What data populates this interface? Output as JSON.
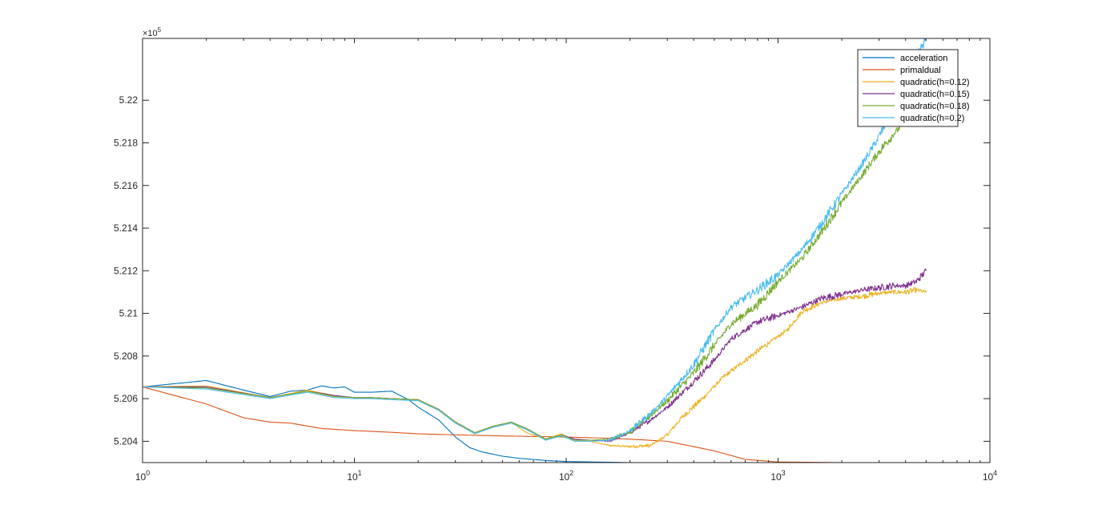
{
  "chart_data": {
    "type": "line",
    "title": "",
    "xlabel": "",
    "ylabel": "",
    "x_scale": "log",
    "xlim": [
      1,
      10000
    ],
    "ylim": [
      520300,
      522290
    ],
    "y_exponent_label": "×10",
    "y_exponent_power": "5",
    "x_ticks": [
      {
        "value": 1,
        "base": "10",
        "power": "0"
      },
      {
        "value": 10,
        "base": "10",
        "power": "1"
      },
      {
        "value": 100,
        "base": "10",
        "power": "2"
      },
      {
        "value": 1000,
        "base": "10",
        "power": "3"
      },
      {
        "value": 10000,
        "base": "10",
        "power": "4"
      }
    ],
    "y_ticks": [
      {
        "value": 520400,
        "label": "5.204"
      },
      {
        "value": 520600,
        "label": "5.206"
      },
      {
        "value": 520800,
        "label": "5.208"
      },
      {
        "value": 521000,
        "label": "5.21"
      },
      {
        "value": 521200,
        "label": "5.212"
      },
      {
        "value": 521400,
        "label": "5.214"
      },
      {
        "value": 521600,
        "label": "5.216"
      },
      {
        "value": 521800,
        "label": "5.218"
      },
      {
        "value": 522000,
        "label": "5.22"
      }
    ],
    "grid": false,
    "legend_position": "top-right",
    "series": [
      {
        "name": "acceleration",
        "color": "#0072BD",
        "noise": 0,
        "x": [
          1,
          2,
          3,
          4,
          5,
          6,
          7,
          8,
          9,
          10,
          12,
          15,
          18,
          20,
          25,
          30,
          35,
          40,
          50,
          60,
          80,
          100,
          150,
          200,
          300,
          500,
          1000,
          2000,
          5000
        ],
        "y": [
          520655,
          520685,
          520640,
          520610,
          520635,
          520640,
          520660,
          520650,
          520655,
          520630,
          520630,
          520635,
          520595,
          520560,
          520500,
          520420,
          520370,
          520350,
          520330,
          520320,
          520310,
          520305,
          520302,
          520300,
          520299,
          520299,
          520299,
          520299,
          520299
        ]
      },
      {
        "name": "primaldual",
        "color": "#D95319",
        "noise": 0,
        "x": [
          1,
          2,
          3,
          4,
          5,
          7,
          10,
          15,
          20,
          30,
          50,
          100,
          150,
          200,
          300,
          500,
          700,
          1000,
          2000,
          5000
        ],
        "y": [
          520655,
          520575,
          520510,
          520490,
          520485,
          520460,
          520450,
          520442,
          520435,
          520430,
          520425,
          520420,
          520415,
          520410,
          520400,
          520355,
          520315,
          520303,
          520300,
          520300
        ]
      },
      {
        "name": "quadratic(h=0.12)",
        "color": "#EDB120",
        "noise": 8,
        "x": [
          1,
          2,
          4,
          6,
          8,
          10,
          12,
          15,
          20,
          25,
          30,
          37,
          45,
          55,
          65,
          80,
          95,
          110,
          130,
          160,
          200,
          250,
          300,
          350,
          450,
          550,
          700,
          900,
          1100,
          1300,
          1600,
          2000,
          2500,
          3000,
          3500,
          4000,
          4500,
          5000
        ],
        "y": [
          520655,
          520660,
          520605,
          520640,
          520615,
          520605,
          520605,
          520600,
          520595,
          520550,
          520490,
          520440,
          520470,
          520490,
          520440,
          520410,
          520435,
          520400,
          520400,
          520380,
          520375,
          520380,
          520430,
          520510,
          520610,
          520700,
          520780,
          520860,
          520920,
          521010,
          521050,
          521070,
          521080,
          521095,
          521100,
          521100,
          521110,
          521100
        ]
      },
      {
        "name": "quadratic(h=0.15)",
        "color": "#7E2F8E",
        "noise": 10,
        "x": [
          1,
          2,
          4,
          6,
          8,
          10,
          12,
          15,
          20,
          25,
          30,
          37,
          45,
          55,
          65,
          80,
          95,
          110,
          130,
          160,
          200,
          250,
          300,
          400,
          500,
          600,
          800,
          1000,
          1300,
          1600,
          2000,
          2500,
          3000,
          3500,
          4000,
          4500,
          5000
        ],
        "y": [
          520655,
          520655,
          520605,
          520635,
          520615,
          520605,
          520605,
          520600,
          520595,
          520550,
          520490,
          520440,
          520470,
          520490,
          520460,
          520410,
          520430,
          520410,
          520405,
          520400,
          520440,
          520500,
          520560,
          520680,
          520780,
          520880,
          520960,
          520990,
          521030,
          521070,
          521090,
          521110,
          521120,
          521130,
          521130,
          521150,
          521200
        ]
      },
      {
        "name": "quadratic(h=0.18)",
        "color": "#77AC30",
        "noise": 14,
        "x": [
          1,
          2,
          4,
          6,
          8,
          10,
          12,
          15,
          20,
          25,
          30,
          37,
          45,
          55,
          65,
          80,
          95,
          110,
          130,
          160,
          200,
          250,
          300,
          400,
          500,
          600,
          800,
          1000,
          1300,
          1600,
          2000,
          2500,
          3000,
          3500,
          4000,
          4500,
          5000
        ],
        "y": [
          520655,
          520650,
          520605,
          520635,
          520610,
          520605,
          520605,
          520600,
          520595,
          520550,
          520490,
          520440,
          520470,
          520490,
          520460,
          520410,
          520430,
          520405,
          520405,
          520410,
          520445,
          520520,
          520590,
          520720,
          520850,
          520950,
          521040,
          521150,
          521260,
          521380,
          521520,
          521650,
          521760,
          521840,
          521900,
          521950,
          522000
        ]
      },
      {
        "name": "quadratic(h=0.2)",
        "color": "#4DBEEE",
        "noise": 14,
        "x": [
          1,
          2,
          4,
          6,
          8,
          10,
          12,
          15,
          20,
          25,
          30,
          37,
          45,
          55,
          65,
          80,
          95,
          110,
          130,
          160,
          200,
          250,
          300,
          400,
          500,
          600,
          800,
          1000,
          1300,
          1600,
          2000,
          2500,
          3000,
          3500,
          4000,
          4500,
          5000
        ],
        "y": [
          520655,
          520645,
          520600,
          520630,
          520605,
          520600,
          520600,
          520595,
          520590,
          520545,
          520485,
          520435,
          520465,
          520485,
          520455,
          520405,
          520425,
          520400,
          520400,
          520405,
          520450,
          520530,
          520610,
          520760,
          520920,
          521030,
          521110,
          521180,
          521300,
          521420,
          521560,
          521700,
          521830,
          521960,
          522100,
          522200,
          522290
        ]
      }
    ]
  }
}
